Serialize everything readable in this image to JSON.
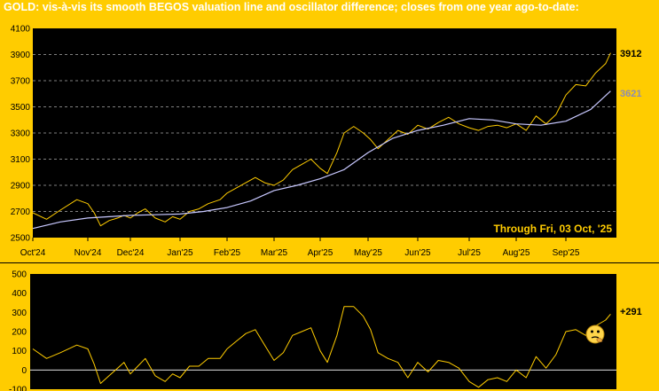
{
  "header": {
    "title": "GOLD:  vis-à-vis its smooth BEGOS valuation line and oscillator difference; closes from one year ago-to-date:"
  },
  "colors": {
    "background": "#FFCC00",
    "plot": "#000000",
    "price_line": "#FFCC00",
    "valuation_line": "#C8C8FF",
    "grid": "#FFFFFF",
    "last_price_label": "#000000",
    "last_valuation_label": "#8C8CB4",
    "through_text": "#FFCC00"
  },
  "chart_data": [
    {
      "type": "line",
      "x_labels": [
        "Oct'24",
        "Nov'24",
        "Dec'24",
        "Jan'25",
        "Feb'25",
        "Mar'25",
        "Apr'25",
        "May'25",
        "Jun'25",
        "Jul'25",
        "Aug'25",
        "Sep'25"
      ],
      "y_ticks": [
        "2500",
        "2700",
        "2900",
        "3100",
        "3300",
        "3500",
        "3700",
        "3900",
        "4100"
      ],
      "ylim": [
        2500,
        4100
      ],
      "grid": "horizontal dashed",
      "annotation": "Through Fri, 03 Oct, '25",
      "last_price_label": "3912",
      "last_valuation_label": "3621",
      "series": [
        {
          "role": "price",
          "points": [
            [
              0,
              2690
            ],
            [
              0.25,
              2640
            ],
            [
              0.5,
              2710
            ],
            [
              0.8,
              2790
            ],
            [
              1.0,
              2760
            ],
            [
              1.15,
              2690
            ],
            [
              1.3,
              2590
            ],
            [
              1.5,
              2630
            ],
            [
              1.7,
              2650
            ],
            [
              1.85,
              2670
            ],
            [
              2.0,
              2650
            ],
            [
              2.15,
              2690
            ],
            [
              2.3,
              2720
            ],
            [
              2.5,
              2650
            ],
            [
              2.7,
              2620
            ],
            [
              2.85,
              2660
            ],
            [
              3.0,
              2640
            ],
            [
              3.2,
              2700
            ],
            [
              3.4,
              2720
            ],
            [
              3.6,
              2760
            ],
            [
              3.85,
              2790
            ],
            [
              4.0,
              2840
            ],
            [
              4.2,
              2880
            ],
            [
              4.4,
              2920
            ],
            [
              4.6,
              2960
            ],
            [
              4.8,
              2920
            ],
            [
              5.0,
              2900
            ],
            [
              5.2,
              2940
            ],
            [
              5.4,
              3020
            ],
            [
              5.6,
              3060
            ],
            [
              5.8,
              3100
            ],
            [
              6.0,
              3030
            ],
            [
              6.15,
              2990
            ],
            [
              6.35,
              3150
            ],
            [
              6.5,
              3300
            ],
            [
              6.7,
              3350
            ],
            [
              6.9,
              3300
            ],
            [
              7.05,
              3250
            ],
            [
              7.2,
              3180
            ],
            [
              7.4,
              3250
            ],
            [
              7.6,
              3320
            ],
            [
              7.8,
              3290
            ],
            [
              8.0,
              3360
            ],
            [
              8.2,
              3330
            ],
            [
              8.4,
              3380
            ],
            [
              8.6,
              3420
            ],
            [
              8.8,
              3370
            ],
            [
              9.0,
              3340
            ],
            [
              9.2,
              3320
            ],
            [
              9.4,
              3350
            ],
            [
              9.6,
              3360
            ],
            [
              9.8,
              3340
            ],
            [
              10.0,
              3370
            ],
            [
              10.2,
              3320
            ],
            [
              10.4,
              3430
            ],
            [
              10.6,
              3370
            ],
            [
              10.8,
              3440
            ],
            [
              11.0,
              3590
            ],
            [
              11.2,
              3670
            ],
            [
              11.4,
              3660
            ],
            [
              11.6,
              3760
            ],
            [
              11.8,
              3830
            ],
            [
              11.9,
              3912
            ]
          ]
        },
        {
          "role": "valuation",
          "points": [
            [
              0,
              2570
            ],
            [
              0.5,
              2620
            ],
            [
              1.0,
              2650
            ],
            [
              1.5,
              2660
            ],
            [
              2.0,
              2670
            ],
            [
              2.5,
              2675
            ],
            [
              3.0,
              2680
            ],
            [
              3.5,
              2700
            ],
            [
              4.0,
              2730
            ],
            [
              4.5,
              2780
            ],
            [
              5.0,
              2860
            ],
            [
              5.5,
              2900
            ],
            [
              6.0,
              2950
            ],
            [
              6.5,
              3020
            ],
            [
              7.0,
              3150
            ],
            [
              7.5,
              3260
            ],
            [
              8.0,
              3320
            ],
            [
              8.5,
              3360
            ],
            [
              9.0,
              3410
            ],
            [
              9.5,
              3400
            ],
            [
              10.0,
              3370
            ],
            [
              10.5,
              3360
            ],
            [
              11.0,
              3390
            ],
            [
              11.5,
              3480
            ],
            [
              11.9,
              3621
            ]
          ]
        }
      ]
    },
    {
      "type": "line",
      "x_labels": [],
      "y_ticks": [
        "-100",
        "0",
        "100",
        "200",
        "300",
        "400",
        "500"
      ],
      "ylim": [
        -100,
        500
      ],
      "zero_line": 0,
      "last_value_label": "+291",
      "series": [
        {
          "role": "oscillator",
          "points": [
            [
              0,
              110
            ],
            [
              0.25,
              60
            ],
            [
              0.5,
              90
            ],
            [
              0.8,
              130
            ],
            [
              1.0,
              110
            ],
            [
              1.15,
              30
            ],
            [
              1.3,
              -70
            ],
            [
              1.5,
              -30
            ],
            [
              1.7,
              10
            ],
            [
              1.85,
              40
            ],
            [
              2.0,
              -20
            ],
            [
              2.15,
              20
            ],
            [
              2.3,
              60
            ],
            [
              2.5,
              -30
            ],
            [
              2.7,
              -60
            ],
            [
              2.85,
              -20
            ],
            [
              3.0,
              -40
            ],
            [
              3.2,
              20
            ],
            [
              3.4,
              20
            ],
            [
              3.6,
              60
            ],
            [
              3.85,
              60
            ],
            [
              4.0,
              110
            ],
            [
              4.2,
              150
            ],
            [
              4.4,
              190
            ],
            [
              4.6,
              210
            ],
            [
              4.8,
              130
            ],
            [
              5.0,
              50
            ],
            [
              5.2,
              90
            ],
            [
              5.4,
              180
            ],
            [
              5.6,
              200
            ],
            [
              5.8,
              220
            ],
            [
              6.0,
              100
            ],
            [
              6.15,
              40
            ],
            [
              6.35,
              180
            ],
            [
              6.5,
              330
            ],
            [
              6.7,
              330
            ],
            [
              6.9,
              280
            ],
            [
              7.05,
              210
            ],
            [
              7.2,
              90
            ],
            [
              7.4,
              60
            ],
            [
              7.6,
              40
            ],
            [
              7.8,
              -40
            ],
            [
              8.0,
              40
            ],
            [
              8.2,
              -10
            ],
            [
              8.4,
              50
            ],
            [
              8.6,
              40
            ],
            [
              8.8,
              10
            ],
            [
              9.0,
              -60
            ],
            [
              9.2,
              -90
            ],
            [
              9.4,
              -50
            ],
            [
              9.6,
              -40
            ],
            [
              9.8,
              -60
            ],
            [
              10.0,
              0
            ],
            [
              10.2,
              -40
            ],
            [
              10.4,
              70
            ],
            [
              10.6,
              10
            ],
            [
              10.8,
              80
            ],
            [
              11.0,
              200
            ],
            [
              11.2,
              210
            ],
            [
              11.4,
              180
            ],
            [
              11.6,
              230
            ],
            [
              11.8,
              260
            ],
            [
              11.9,
              291
            ]
          ]
        }
      ]
    }
  ]
}
